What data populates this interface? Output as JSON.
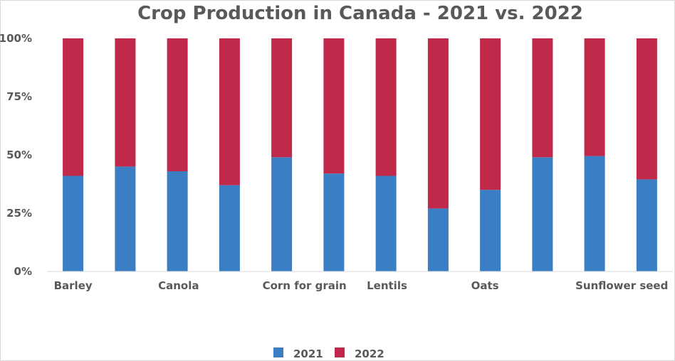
{
  "chart_data": {
    "type": "bar",
    "stacked": "percent",
    "title": "Crop Production in Canada - 2021 vs. 2022",
    "xlabel": "",
    "ylabel": "",
    "ylim": [
      0,
      100
    ],
    "y_ticks": [
      "0%",
      "25%",
      "50%",
      "75%",
      "100%"
    ],
    "categories": [
      "Barley",
      "",
      "Canola",
      "",
      "Corn for grain",
      "",
      "Lentils",
      "",
      "Oats",
      "",
      "Sunflower seed",
      ""
    ],
    "series": [
      {
        "name": "2021",
        "color": "#3a7ec4",
        "values": [
          41,
          45,
          43,
          37,
          49,
          42,
          41,
          27,
          35,
          49,
          49.5,
          39.5
        ]
      },
      {
        "name": "2022",
        "color": "#c0294a",
        "values": [
          59,
          55,
          57,
          63,
          51,
          58,
          59,
          73,
          65,
          51,
          50.5,
          60.5
        ]
      }
    ],
    "legend_position": "bottom",
    "grid": false
  }
}
